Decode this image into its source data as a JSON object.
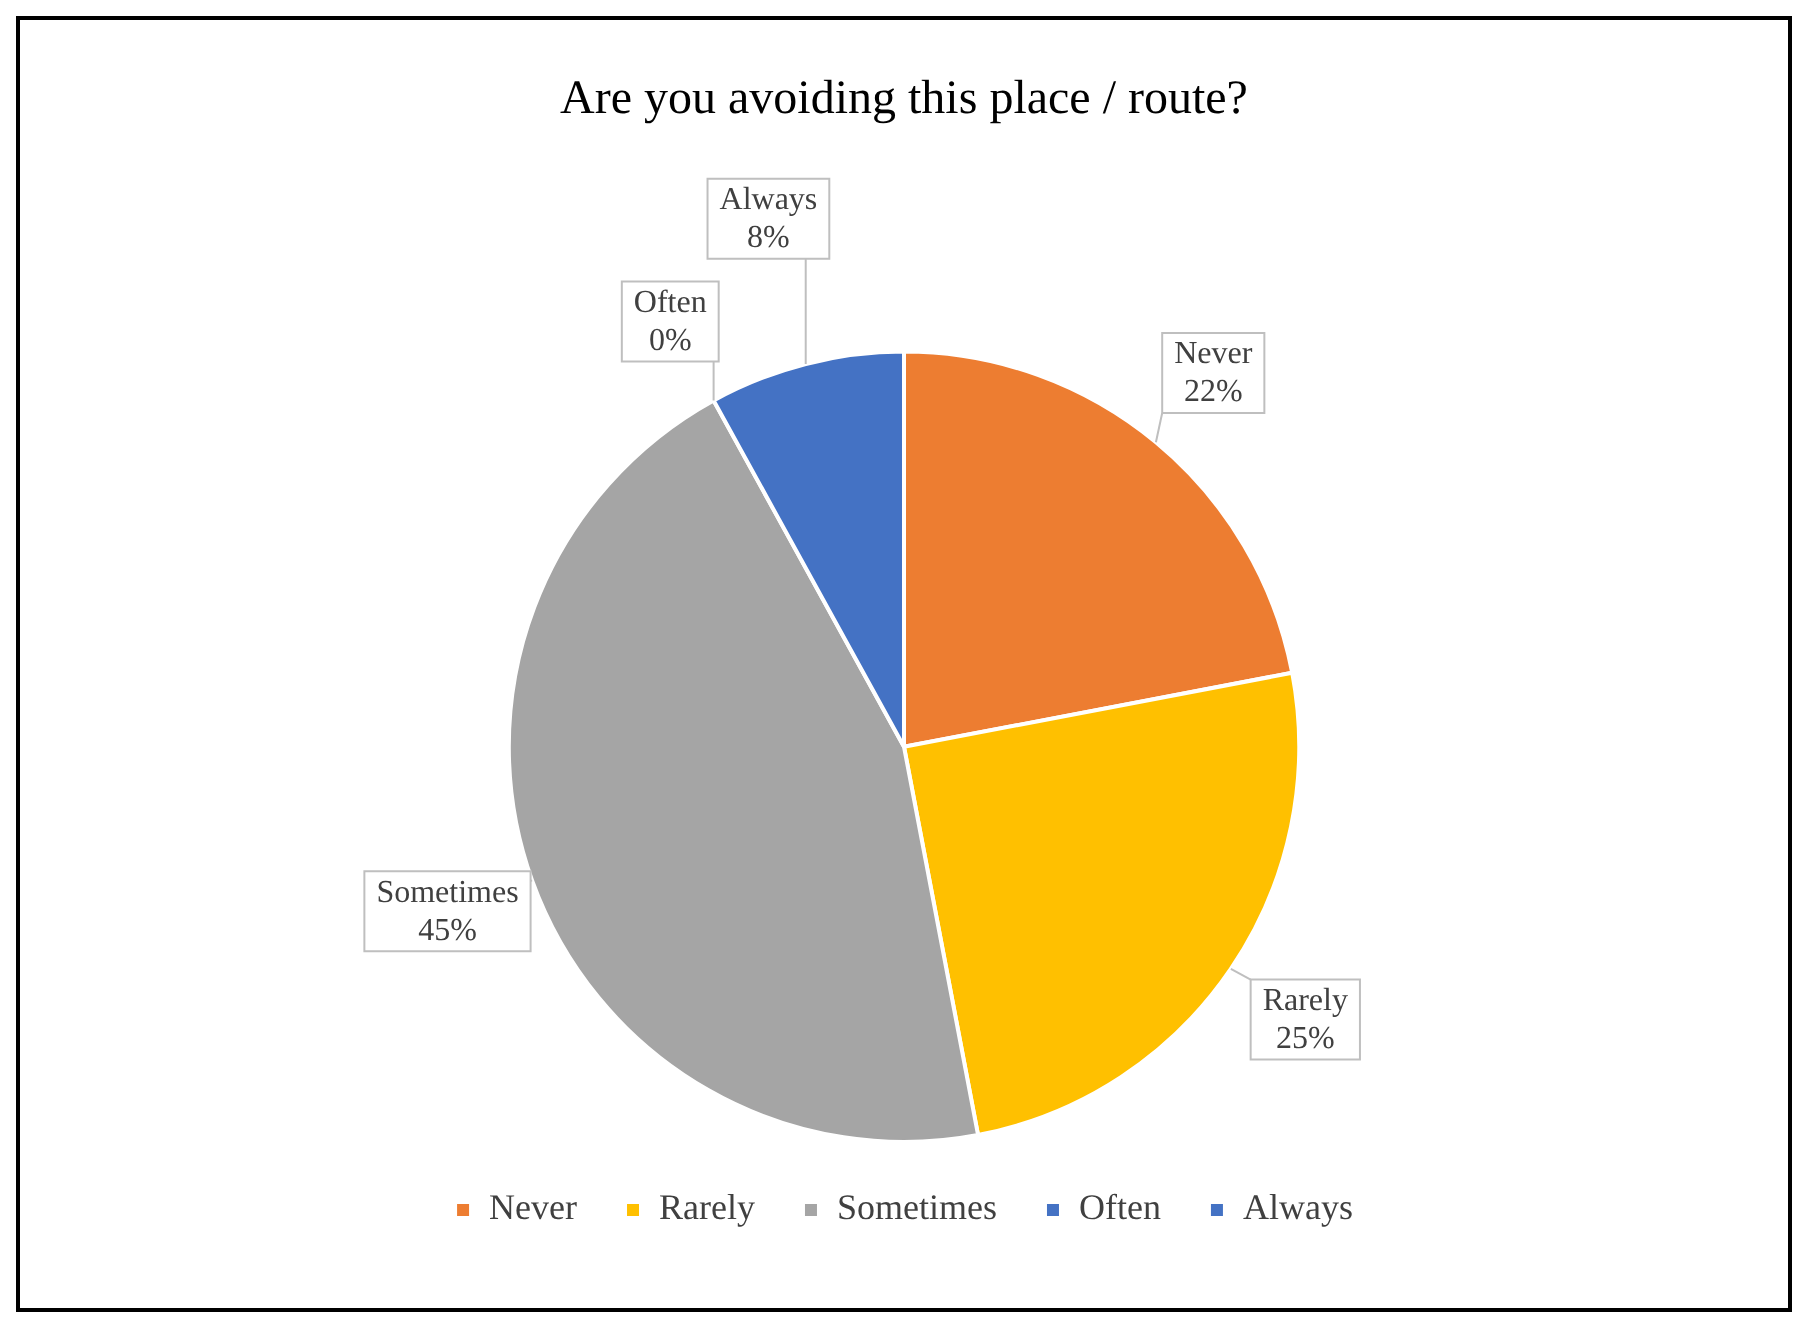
{
  "chart_data": {
    "type": "pie",
    "title": "Are you avoiding this place / route?",
    "categories": [
      "Never",
      "Rarely",
      "Sometimes",
      "Often",
      "Always"
    ],
    "values": [
      22,
      25,
      45,
      0,
      8
    ],
    "value_labels": [
      "22%",
      "25%",
      "45%",
      "0%",
      "8%"
    ],
    "colors": [
      "#ed7d31",
      "#ffc000",
      "#a5a5a5",
      "#4472c4",
      "#4472c4"
    ],
    "legend": "bottom"
  }
}
